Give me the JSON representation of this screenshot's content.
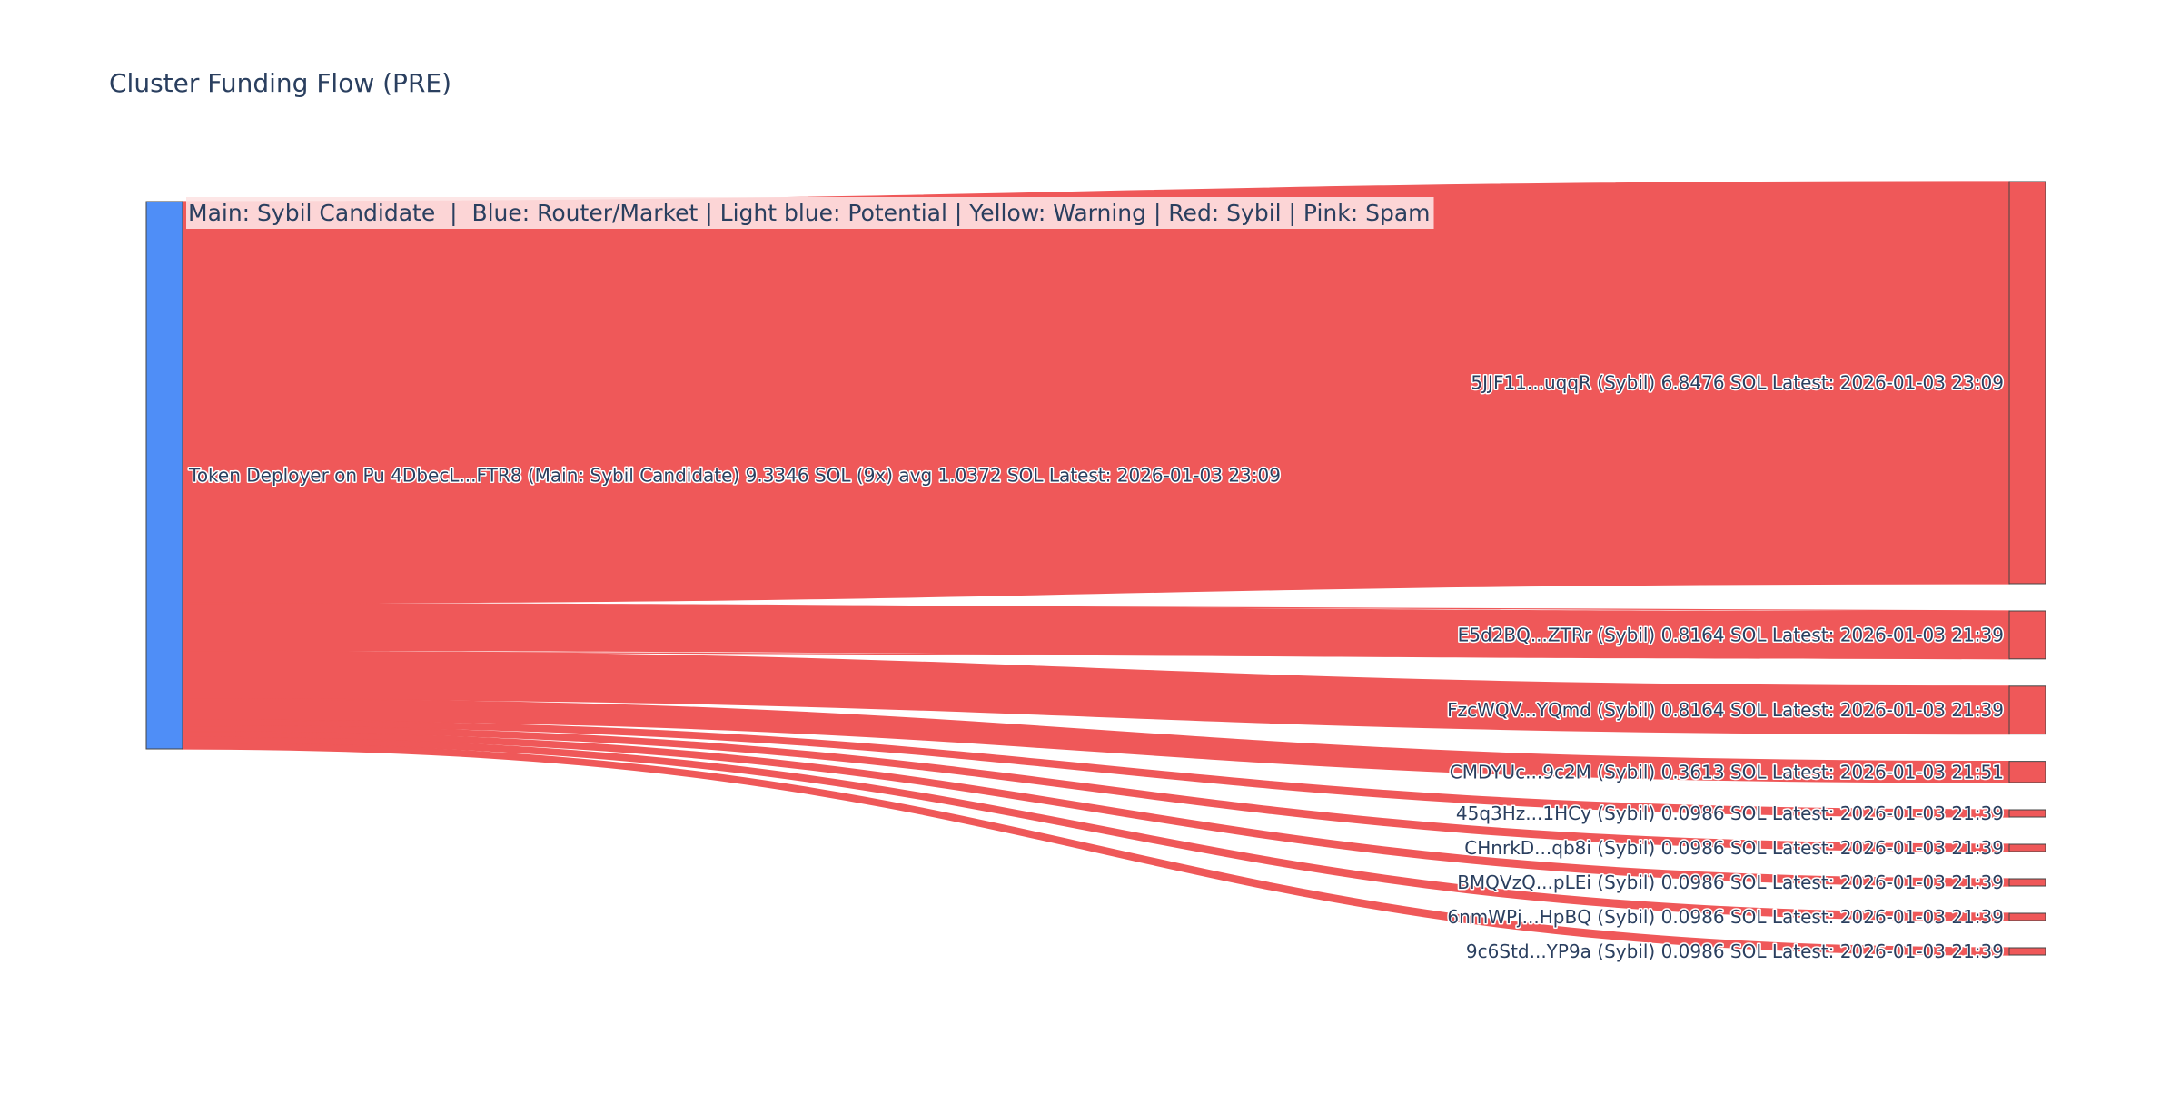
{
  "chart_data": {
    "type": "sankey",
    "title": "Cluster Funding Flow (PRE)",
    "legend_note": "Main: Sybil Candidate  |  Blue: Router/Market | Light blue: Potential | Yellow: Warning | Red: Sybil | Pink: Spam",
    "colors": {
      "source_node": "#4f8ef7",
      "sybil_node": "#ef5859",
      "link": "#ef5859",
      "node_border": "#444444",
      "legend_background": "#fde3e3",
      "text": "#2a3f5f"
    },
    "source": {
      "label": "Token Deployer on Pu 4DbecL...FTR8 (Main: Sybil Candidate) 9.3346 SOL (9x) avg 1.0372 SOL Latest: 2026-01-03 23:09",
      "total": 9.3346,
      "color": "#4f8ef7"
    },
    "targets": [
      {
        "label": "5JJF11...uqqR (Sybil) 6.8476 SOL Latest: 2026-01-03 23:09",
        "value": 6.8476,
        "color": "#ef5859"
      },
      {
        "label": "E5d2BQ...ZTRr (Sybil) 0.8164 SOL Latest: 2026-01-03 21:39",
        "value": 0.8164,
        "color": "#ef5859"
      },
      {
        "label": "FzcWQV...YQmd (Sybil) 0.8164 SOL Latest: 2026-01-03 21:39",
        "value": 0.8164,
        "color": "#ef5859"
      },
      {
        "label": "CMDYUc...9c2M (Sybil) 0.3613 SOL Latest: 2026-01-03 21:51",
        "value": 0.3613,
        "color": "#ef5859"
      },
      {
        "label": "45q3Hz...1HCy (Sybil) 0.0986 SOL Latest: 2026-01-03 21:39",
        "value": 0.0986,
        "color": "#ef5859"
      },
      {
        "label": "CHnrkD...qb8i (Sybil) 0.0986 SOL Latest: 2026-01-03 21:39",
        "value": 0.0986,
        "color": "#ef5859"
      },
      {
        "label": "BMQVzQ...pLEi (Sybil) 0.0986 SOL Latest: 2026-01-03 21:39",
        "value": 0.0986,
        "color": "#ef5859"
      },
      {
        "label": "6nmWPj...HpBQ (Sybil) 0.0986 SOL Latest: 2026-01-03 21:39",
        "value": 0.0986,
        "color": "#ef5859"
      },
      {
        "label": "9c6Std...YP9a (Sybil) 0.0986 SOL Latest: 2026-01-03 21:39",
        "value": 0.0986,
        "color": "#ef5859"
      }
    ]
  }
}
